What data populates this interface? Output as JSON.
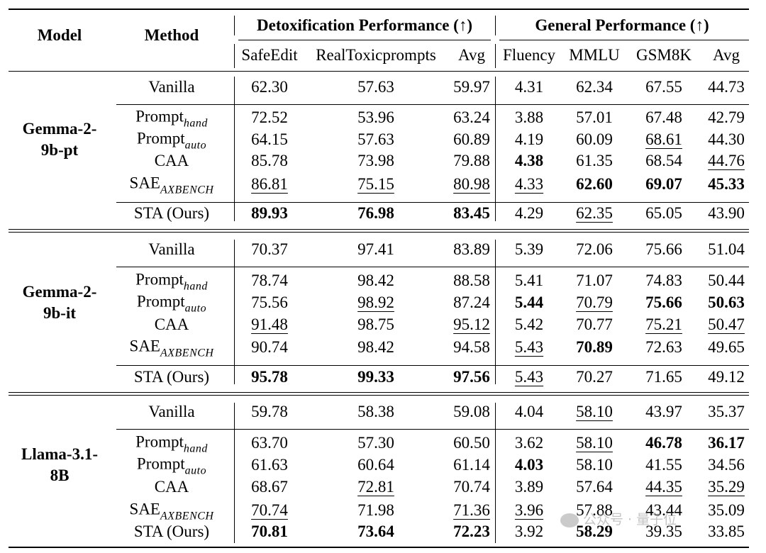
{
  "header": {
    "model": "Model",
    "method": "Method",
    "detox_group": "Detoxification Performance (↑)",
    "general_group": "General Performance (↑)",
    "columns": [
      "SafeEdit",
      "RealToxicprompts",
      "Avg",
      "Fluency",
      "MMLU",
      "GSM8K",
      "Avg"
    ]
  },
  "sections": [
    {
      "model_lines": [
        "Gemma-2-",
        "9b-pt"
      ],
      "rows": [
        {
          "method": "Vanilla",
          "sub": "",
          "values": [
            "62.30",
            "57.63",
            "59.97",
            "4.31",
            "62.34",
            "67.55",
            "44.73"
          ],
          "bold": [],
          "underline": []
        },
        {
          "method": "Prompt",
          "sub": "hand",
          "values": [
            "72.52",
            "53.96",
            "63.24",
            "3.88",
            "57.01",
            "67.48",
            "42.79"
          ],
          "bold": [],
          "underline": []
        },
        {
          "method": "Prompt",
          "sub": "auto",
          "values": [
            "64.15",
            "57.63",
            "60.89",
            "4.19",
            "60.09",
            "68.61",
            "44.30"
          ],
          "bold": [],
          "underline": [
            5
          ]
        },
        {
          "method": "CAA",
          "sub": "",
          "values": [
            "85.78",
            "73.98",
            "79.88",
            "4.38",
            "61.35",
            "68.54",
            "44.76"
          ],
          "bold": [
            3
          ],
          "underline": [
            6
          ]
        },
        {
          "method": "SAE",
          "sub": "AXBENCH",
          "values": [
            "86.81",
            "75.15",
            "80.98",
            "4.33",
            "62.60",
            "69.07",
            "45.33"
          ],
          "bold": [
            4,
            5,
            6
          ],
          "underline": [
            0,
            1,
            2,
            3
          ]
        },
        {
          "method": "STA (Ours)",
          "sub": "",
          "values": [
            "89.93",
            "76.98",
            "83.45",
            "4.29",
            "62.35",
            "65.05",
            "43.90"
          ],
          "bold": [
            0,
            1,
            2
          ],
          "underline": [
            4
          ]
        }
      ]
    },
    {
      "model_lines": [
        "Gemma-2-",
        "9b-it"
      ],
      "rows": [
        {
          "method": "Vanilla",
          "sub": "",
          "values": [
            "70.37",
            "97.41",
            "83.89",
            "5.39",
            "72.06",
            "75.66",
            "51.04"
          ],
          "bold": [],
          "underline": []
        },
        {
          "method": "Prompt",
          "sub": "hand",
          "values": [
            "78.74",
            "98.42",
            "88.58",
            "5.41",
            "71.07",
            "74.83",
            "50.44"
          ],
          "bold": [],
          "underline": []
        },
        {
          "method": "Prompt",
          "sub": "auto",
          "values": [
            "75.56",
            "98.92",
            "87.24",
            "5.44",
            "70.79",
            "75.66",
            "50.63"
          ],
          "bold": [
            3,
            5,
            6
          ],
          "underline": [
            1,
            4
          ]
        },
        {
          "method": "CAA",
          "sub": "",
          "values": [
            "91.48",
            "98.75",
            "95.12",
            "5.42",
            "70.77",
            "75.21",
            "50.47"
          ],
          "bold": [],
          "underline": [
            0,
            2,
            5,
            6
          ]
        },
        {
          "method": "SAE",
          "sub": "AXBENCH",
          "values": [
            "90.74",
            "98.42",
            "94.58",
            "5.43",
            "70.89",
            "72.63",
            "49.65"
          ],
          "bold": [
            4
          ],
          "underline": [
            3
          ]
        },
        {
          "method": "STA (Ours)",
          "sub": "",
          "values": [
            "95.78",
            "99.33",
            "97.56",
            "5.43",
            "70.27",
            "71.65",
            "49.12"
          ],
          "bold": [
            0,
            1,
            2
          ],
          "underline": [
            3
          ]
        }
      ]
    },
    {
      "model_lines": [
        "Llama-3.1-",
        "8B"
      ],
      "rows": [
        {
          "method": "Vanilla",
          "sub": "",
          "values": [
            "59.78",
            "58.38",
            "59.08",
            "4.04",
            "58.10",
            "43.97",
            "35.37"
          ],
          "bold": [],
          "underline": [
            4
          ]
        },
        {
          "method": "Prompt",
          "sub": "hand",
          "values": [
            "63.70",
            "57.30",
            "60.50",
            "3.62",
            "58.10",
            "46.78",
            "36.17"
          ],
          "bold": [
            5,
            6
          ],
          "underline": [
            4
          ]
        },
        {
          "method": "Prompt",
          "sub": "auto",
          "values": [
            "61.63",
            "60.64",
            "61.14",
            "4.03",
            "58.10",
            "41.55",
            "34.56"
          ],
          "bold": [
            3
          ],
          "underline": []
        },
        {
          "method": "CAA",
          "sub": "",
          "values": [
            "68.67",
            "72.81",
            "70.74",
            "3.89",
            "57.64",
            "44.35",
            "35.29"
          ],
          "bold": [],
          "underline": [
            1,
            5,
            6
          ]
        },
        {
          "method": "SAE",
          "sub": "AXBENCH",
          "values": [
            "70.74",
            "71.98",
            "71.36",
            "3.96",
            "57.88",
            "43.44",
            "35.09"
          ],
          "bold": [],
          "underline": [
            0,
            2,
            3
          ]
        },
        {
          "method": "STA (Ours)",
          "sub": "",
          "values": [
            "70.81",
            "73.64",
            "72.23",
            "3.92",
            "58.29",
            "39.35",
            "33.85"
          ],
          "bold": [
            0,
            1,
            2,
            4
          ],
          "underline": []
        }
      ]
    }
  ],
  "watermark": "公众号 · 量子位"
}
